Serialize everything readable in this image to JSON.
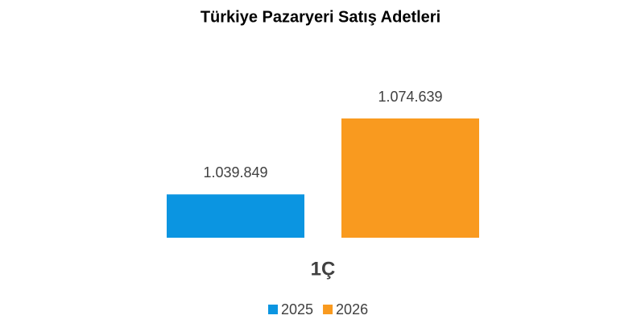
{
  "chart_data": {
    "type": "bar",
    "title": "Türkiye Pazaryeri Satış Adetleri",
    "categories": [
      "1Ç"
    ],
    "series": [
      {
        "name": "2025",
        "color": "#0b95e1",
        "values": [
          1039849
        ],
        "value_labels": [
          "1.039.849"
        ]
      },
      {
        "name": "2026",
        "color": "#f99a1f",
        "values": [
          1074639
        ],
        "value_labels": [
          "1.074.639"
        ]
      }
    ],
    "ylim": [
      1020000,
      1092000
    ],
    "legend": "bottom"
  }
}
